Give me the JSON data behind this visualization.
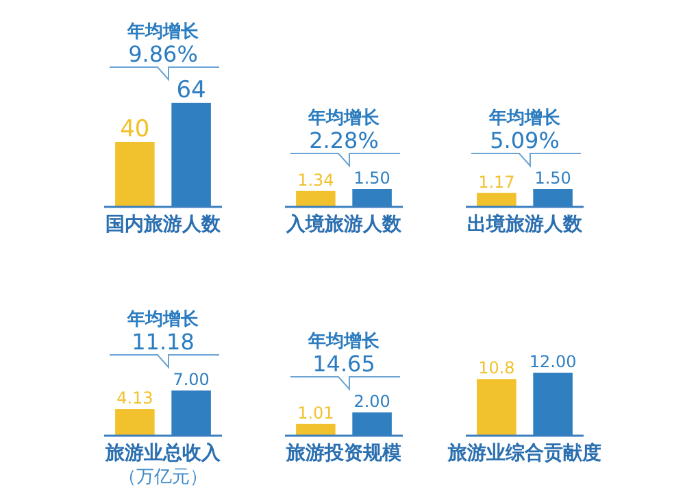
{
  "chart_data": [
    {
      "type": "bar",
      "categories": [
        null,
        null
      ],
      "colors": [
        "#f2c12e",
        "#2f7fc1"
      ],
      "values": [
        40,
        64
      ],
      "data_labels": true,
      "xlabel": "国内旅游人数",
      "annotations": [
        "年均增长",
        "9.86%"
      ]
    },
    {
      "type": "bar",
      "categories": [
        null,
        null
      ],
      "colors": [
        "#f2c12e",
        "#2f7fc1"
      ],
      "values": [
        1.34,
        1.5
      ],
      "value_labels": [
        "1.34",
        "1.50"
      ],
      "xlabel": "入境旅游人数",
      "annotations": [
        "年均增长",
        "2.28%"
      ]
    },
    {
      "type": "bar",
      "categories": [
        null,
        null
      ],
      "colors": [
        "#f2c12e",
        "#2f7fc1"
      ],
      "values": [
        1.17,
        1.5
      ],
      "value_labels": [
        "1.17",
        "1.50"
      ],
      "xlabel": "出境旅游人数",
      "annotations": [
        "年均增长",
        "5.09%"
      ]
    },
    {
      "type": "bar",
      "categories": [
        null,
        null
      ],
      "colors": [
        "#f2c12e",
        "#2f7fc1"
      ],
      "values": [
        4.13,
        7.0
      ],
      "value_labels": [
        "4.13",
        "7.00"
      ],
      "xlabel": "旅游业总收入（万亿元）",
      "annotations": [
        "年均增长",
        "11.18"
      ]
    },
    {
      "type": "bar",
      "categories": [
        null,
        null
      ],
      "colors": [
        "#f2c12e",
        "#2f7fc1"
      ],
      "values": [
        1.01,
        2.0
      ],
      "value_labels": [
        "1.01",
        "2.00"
      ],
      "xlabel": "旅游投资规模",
      "annotations": [
        "年均增长",
        "14.65"
      ]
    },
    {
      "type": "bar",
      "categories": [
        null,
        null
      ],
      "colors": [
        "#f2c12e",
        "#2f7fc1"
      ],
      "values": [
        10.8,
        12.0
      ],
      "value_labels": [
        "10.8",
        "12.00"
      ],
      "xlabel": "旅游业综合贡献度"
    }
  ]
}
